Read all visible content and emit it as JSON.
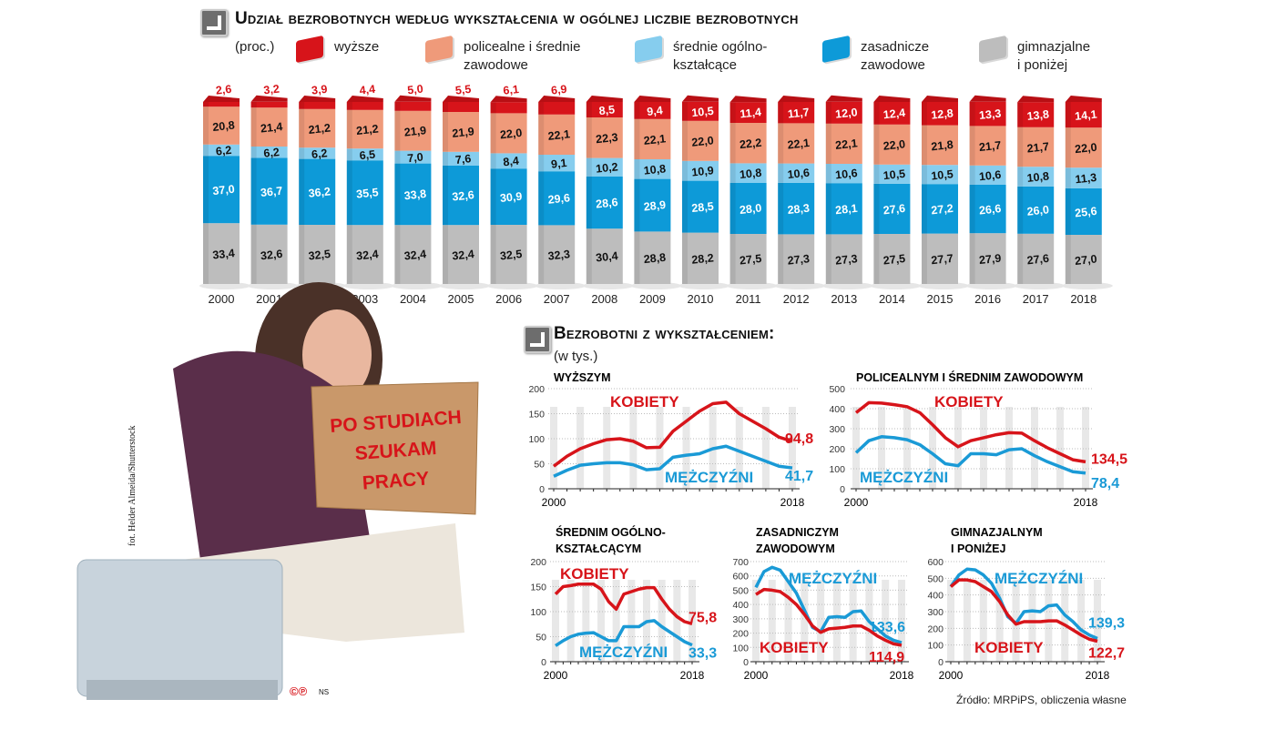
{
  "top": {
    "title": "Udział bezrobotnych według wykształcenia w ogólnej liczbie bezrobotnych",
    "unit": "(proc.)"
  },
  "colors": {
    "wyzsze": "#d7141a",
    "policealne": "#ef9a7a",
    "srednie_ogolne": "#86cdee",
    "zasadnicze": "#0d9ad8",
    "gimnazjalne": "#bdbdbd",
    "kobiety": "#d7141a",
    "mezczyzni": "#1a9ad6"
  },
  "legend": [
    {
      "key": "wyzsze",
      "label": "wyższe"
    },
    {
      "key": "policealne",
      "label": "policealne i średnie",
      "label2": "zawodowe"
    },
    {
      "key": "srednie_ogolne",
      "label": "średnie ogólno-",
      "label2": "kształcące"
    },
    {
      "key": "zasadnicze",
      "label": "zasadnicze",
      "label2": "zawodowe"
    },
    {
      "key": "gimnazjalne",
      "label": "gimnazjalne",
      "label2": "i poniżej"
    }
  ],
  "chart_data": [
    {
      "type": "bar",
      "stacked": true,
      "title": "Udział bezrobotnych według wykształcenia w ogólnej liczbie bezrobotnych",
      "unit": "(proc.)",
      "categories": [
        "2000",
        "2001",
        "2002",
        "2003",
        "2004",
        "2005",
        "2006",
        "2007",
        "2008",
        "2009",
        "2010",
        "2011",
        "2012",
        "2013",
        "2014",
        "2015",
        "2016",
        "2017",
        "2018"
      ],
      "series": [
        {
          "name": "gimnazjalne i poniżej",
          "key": "gimnazjalne",
          "values": [
            "33,4",
            "32,6",
            "32,5",
            "32,4",
            "32,4",
            "32,4",
            "32,5",
            "32,3",
            "30,4",
            "28,8",
            "28,2",
            "27,5",
            "27,3",
            "27,3",
            "27,5",
            "27,7",
            "27,9",
            "27,6",
            "27,0"
          ]
        },
        {
          "name": "zasadnicze zawodowe",
          "key": "zasadnicze",
          "values": [
            "37,0",
            "36,7",
            "36,2",
            "35,5",
            "33,8",
            "32,6",
            "30,9",
            "29,6",
            "28,6",
            "28,9",
            "28,5",
            "28,0",
            "28,3",
            "28,1",
            "27,6",
            "27,2",
            "26,6",
            "26,0",
            "25,6"
          ]
        },
        {
          "name": "średnie ogólnokształcące",
          "key": "srednie_ogolne",
          "values": [
            "6,2",
            "6,2",
            "6,2",
            "6,5",
            "7,0",
            "7,6",
            "8,4",
            "9,1",
            "10,2",
            "10,8",
            "10,9",
            "10,8",
            "10,6",
            "10,6",
            "10,5",
            "10,5",
            "10,6",
            "10,8",
            "11,3"
          ]
        },
        {
          "name": "policealne i średnie zawodowe",
          "key": "policealne",
          "values": [
            "20,8",
            "21,4",
            "21,2",
            "21,2",
            "21,9",
            "21,9",
            "22,0",
            "22,1",
            "22,3",
            "22,1",
            "22,0",
            "22,2",
            "22,1",
            "22,1",
            "22,0",
            "21,8",
            "21,7",
            "21,7",
            "22,0"
          ]
        },
        {
          "name": "wyższe",
          "key": "wyzsze",
          "values": [
            "2,6",
            "3,2",
            "3,9",
            "4,4",
            "5,0",
            "5,5",
            "6,1",
            "6,9",
            "8,5",
            "9,4",
            "10,5",
            "11,4",
            "11,7",
            "12,0",
            "12,4",
            "12,8",
            "13,3",
            "13,8",
            "14,1"
          ]
        }
      ],
      "ylim": [
        0,
        100
      ]
    },
    {
      "type": "line",
      "title": "wyższym",
      "ylim": [
        0,
        200
      ],
      "yticks": [
        0,
        50,
        100,
        150,
        200
      ],
      "xticks": [
        "2000",
        "2018"
      ],
      "series": [
        {
          "name": "KOBIETY",
          "key": "kobiety",
          "end_label": "94,8",
          "values": [
            45,
            65,
            80,
            90,
            98,
            100,
            95,
            82,
            83,
            115,
            135,
            155,
            170,
            173,
            150,
            135,
            120,
            103,
            94.8
          ]
        },
        {
          "name": "MĘŻCZYŹNI",
          "key": "mezczyzni",
          "end_label": "41,7",
          "values": [
            25,
            37,
            47,
            50,
            52,
            52,
            48,
            38,
            40,
            63,
            67,
            70,
            80,
            85,
            75,
            65,
            55,
            45,
            41.7
          ]
        }
      ]
    },
    {
      "type": "line",
      "title": "policealnym i średnim zawodowym",
      "ylim": [
        0,
        500
      ],
      "yticks": [
        0,
        100,
        200,
        300,
        400,
        500
      ],
      "xticks": [
        "2000",
        "2018"
      ],
      "series": [
        {
          "name": "KOBIETY",
          "key": "kobiety",
          "end_label": "134,5",
          "values": [
            380,
            430,
            428,
            420,
            410,
            380,
            320,
            255,
            210,
            240,
            255,
            270,
            280,
            278,
            240,
            205,
            175,
            145,
            134.5
          ]
        },
        {
          "name": "MĘŻCZYŹNI",
          "key": "mezczyzni",
          "end_label": "78,4",
          "values": [
            180,
            240,
            260,
            255,
            245,
            220,
            175,
            125,
            115,
            175,
            175,
            170,
            195,
            200,
            165,
            135,
            110,
            85,
            78.4
          ]
        }
      ]
    },
    {
      "type": "line",
      "title": "średnim ogólno-",
      "title2": "kształcącym",
      "ylim": [
        0,
        200
      ],
      "yticks": [
        0,
        50,
        100,
        150,
        200
      ],
      "xticks": [
        "2000",
        "2018"
      ],
      "series": [
        {
          "name": "KOBIETY",
          "key": "kobiety",
          "end_label": "75,8",
          "values": [
            135,
            150,
            152,
            155,
            155,
            155,
            145,
            120,
            105,
            135,
            140,
            145,
            148,
            148,
            125,
            105,
            90,
            80,
            75.8
          ]
        },
        {
          "name": "MĘŻCZYŹNI",
          "key": "mezczyzni",
          "end_label": "33,3",
          "values": [
            32,
            42,
            50,
            55,
            57,
            58,
            50,
            42,
            42,
            70,
            70,
            70,
            80,
            82,
            70,
            60,
            50,
            40,
            33.3
          ]
        }
      ]
    },
    {
      "type": "line",
      "title": "zasadniczym",
      "title2": "zawodowym",
      "ylim": [
        0,
        700
      ],
      "yticks": [
        0,
        100,
        200,
        300,
        400,
        500,
        600,
        700
      ],
      "xticks": [
        "2000",
        "2018"
      ],
      "series": [
        {
          "name": "MĘŻCZYŹNI",
          "key": "mezczyzni",
          "end_label": "133,6",
          "values": [
            520,
            630,
            660,
            640,
            560,
            480,
            360,
            240,
            210,
            310,
            315,
            310,
            350,
            355,
            280,
            230,
            180,
            150,
            133.6
          ]
        },
        {
          "name": "KOBIETY",
          "key": "kobiety",
          "end_label": "114,9",
          "values": [
            470,
            505,
            500,
            490,
            450,
            400,
            330,
            250,
            205,
            230,
            235,
            240,
            250,
            250,
            220,
            180,
            150,
            125,
            114.9
          ]
        }
      ]
    },
    {
      "type": "line",
      "title": "gimnazjalnym",
      "title2": "i poniżej",
      "ylim": [
        0,
        600
      ],
      "yticks": [
        0,
        100,
        200,
        300,
        400,
        500,
        600
      ],
      "xticks": [
        "2000",
        "2018"
      ],
      "series": [
        {
          "name": "MĘŻCZYŹNI",
          "key": "mezczyzni",
          "end_label": "139,3",
          "values": [
            450,
            520,
            555,
            550,
            520,
            470,
            380,
            270,
            230,
            300,
            305,
            300,
            335,
            340,
            280,
            240,
            190,
            160,
            139.3
          ]
        },
        {
          "name": "KOBIETY",
          "key": "kobiety",
          "end_label": "122,7",
          "values": [
            450,
            490,
            490,
            480,
            450,
            420,
            360,
            280,
            225,
            240,
            240,
            240,
            245,
            245,
            220,
            190,
            160,
            135,
            122.7
          ]
        }
      ]
    }
  ],
  "bottom": {
    "title": "Bezrobotni z wykształceniem:",
    "unit": "(w tys.)"
  },
  "photo": {
    "sign_lines": [
      "PO STUDIACH",
      "SZUKAM",
      "PRACY"
    ],
    "credit": "fot. Helder Almeida/Shutterstock",
    "copyright": "©℗",
    "copyright_tag": "NS"
  },
  "source": "Źródło: MRPiPS, obliczenia własne"
}
